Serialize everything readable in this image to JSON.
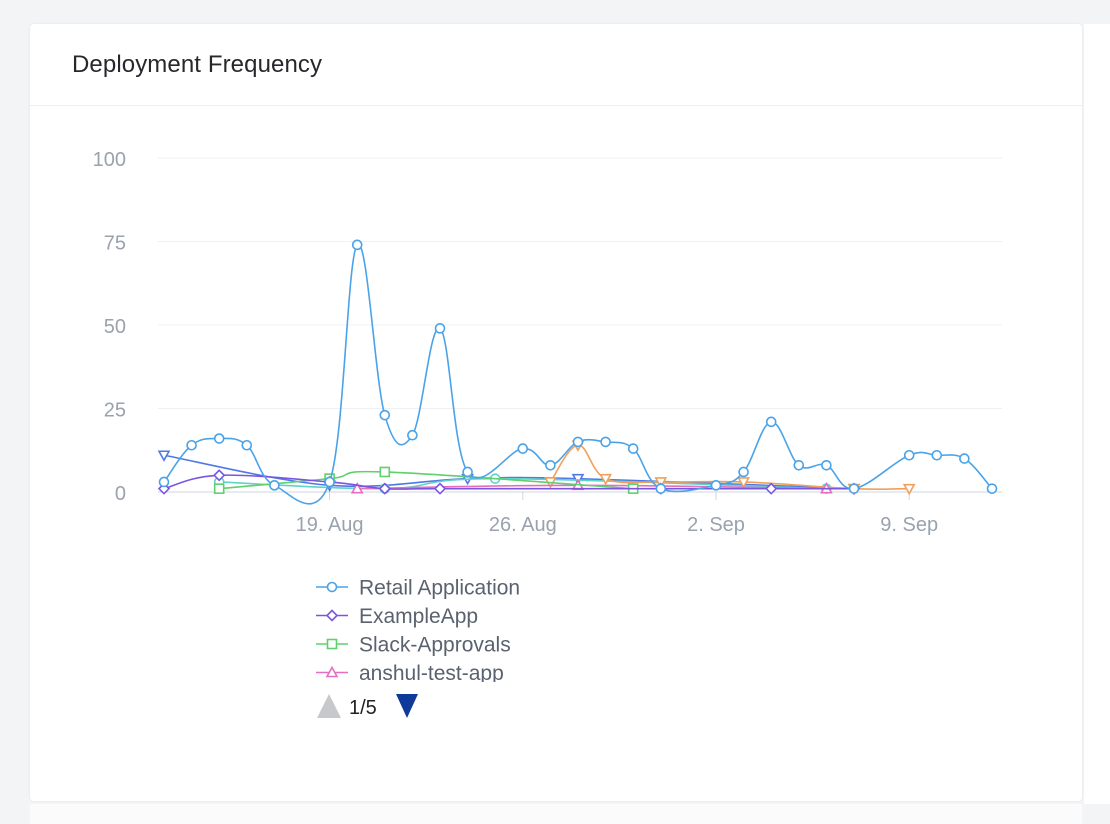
{
  "panel": {
    "title": "Deployment Frequency"
  },
  "chart_data": {
    "type": "line",
    "ylim": [
      0,
      100
    ],
    "xlim": [
      "2024-08-13",
      "2024-09-13"
    ],
    "yticks": [
      "0",
      "25",
      "50",
      "75",
      "100"
    ],
    "xticks": [
      {
        "label": "19. Aug",
        "date": "2024-08-19"
      },
      {
        "label": "26. Aug",
        "date": "2024-08-26"
      },
      {
        "label": "2. Sep",
        "date": "2024-09-02"
      },
      {
        "label": "9. Sep",
        "date": "2024-09-09"
      }
    ],
    "grid": true,
    "legend_position": "bottom-left",
    "series": [
      {
        "name": "Retail Application",
        "color": "#4aa3e8",
        "marker": "circle",
        "points": [
          [
            "2024-08-13",
            3
          ],
          [
            "2024-08-14",
            14
          ],
          [
            "2024-08-15",
            16
          ],
          [
            "2024-08-16",
            14
          ],
          [
            "2024-08-17",
            2
          ],
          [
            "2024-08-19",
            3
          ],
          [
            "2024-08-20",
            74
          ],
          [
            "2024-08-21",
            23
          ],
          [
            "2024-08-22",
            17
          ],
          [
            "2024-08-23",
            49
          ],
          [
            "2024-08-24",
            6
          ],
          [
            "2024-08-26",
            13
          ],
          [
            "2024-08-27",
            8
          ],
          [
            "2024-08-28",
            15
          ],
          [
            "2024-08-29",
            15
          ],
          [
            "2024-08-30",
            13
          ],
          [
            "2024-08-31",
            1
          ],
          [
            "2024-09-02",
            2
          ],
          [
            "2024-09-03",
            6
          ],
          [
            "2024-09-04",
            21
          ],
          [
            "2024-09-05",
            8
          ],
          [
            "2024-09-06",
            8
          ],
          [
            "2024-09-07",
            1
          ],
          [
            "2024-09-09",
            11
          ],
          [
            "2024-09-10",
            11
          ],
          [
            "2024-09-11",
            10
          ],
          [
            "2024-09-12",
            1
          ]
        ]
      },
      {
        "name": "ExampleApp",
        "color": "#7b55e0",
        "marker": "diamond",
        "points": [
          [
            "2024-08-13",
            1
          ],
          [
            "2024-08-15",
            5
          ],
          [
            "2024-08-19",
            3
          ],
          [
            "2024-08-21",
            1
          ],
          [
            "2024-08-23",
            1
          ],
          [
            "2024-08-31",
            1
          ],
          [
            "2024-09-04",
            1
          ],
          [
            "2024-09-07",
            1
          ]
        ]
      },
      {
        "name": "Slack-Approvals",
        "color": "#5ed06d",
        "marker": "square",
        "points": [
          [
            "2024-08-15",
            1
          ],
          [
            "2024-08-19",
            4
          ],
          [
            "2024-08-21",
            6
          ],
          [
            "2024-08-30",
            1
          ]
        ]
      },
      {
        "name": "anshul-test-app",
        "color": "#e46fbe",
        "marker": "triangle",
        "points": [
          [
            "2024-08-20",
            1
          ],
          [
            "2024-08-28",
            2
          ],
          [
            "2024-09-06",
            1
          ]
        ]
      },
      {
        "name": "",
        "color": "#f0a05a",
        "marker": "triangle-down",
        "points": [
          [
            "2024-08-27",
            3
          ],
          [
            "2024-08-28",
            14
          ],
          [
            "2024-08-29",
            4
          ],
          [
            "2024-08-31",
            3
          ],
          [
            "2024-09-03",
            3
          ],
          [
            "2024-09-07",
            1
          ],
          [
            "2024-09-09",
            1
          ]
        ]
      },
      {
        "name": "",
        "color": "#5fd3c8",
        "marker": "circle",
        "points": [
          [
            "2024-08-15",
            3
          ],
          [
            "2024-08-21",
            1
          ],
          [
            "2024-08-25",
            4
          ],
          [
            "2024-09-06",
            1
          ]
        ]
      },
      {
        "name": "",
        "color": "#4f79e6",
        "marker": "triangle-down",
        "points": [
          [
            "2024-08-13",
            11
          ],
          [
            "2024-08-19",
            2
          ],
          [
            "2024-08-24",
            4
          ],
          [
            "2024-08-28",
            4
          ],
          [
            "2024-09-07",
            1
          ]
        ]
      }
    ],
    "legend": {
      "visible_entries": [
        "Retail Application",
        "ExampleApp",
        "Slack-Approvals",
        "anshul-test-app"
      ],
      "pager": "1/5"
    }
  }
}
